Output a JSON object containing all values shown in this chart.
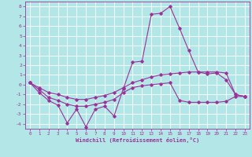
{
  "title": "",
  "xlabel": "Windchill (Refroidissement éolien,°C)",
  "xlim": [
    -0.5,
    23.5
  ],
  "ylim": [
    -4.5,
    8.5
  ],
  "xticks": [
    0,
    1,
    2,
    3,
    4,
    5,
    6,
    7,
    8,
    9,
    10,
    11,
    12,
    13,
    14,
    15,
    16,
    17,
    18,
    19,
    20,
    21,
    22,
    23
  ],
  "yticks": [
    8,
    7,
    6,
    5,
    4,
    3,
    2,
    1,
    0,
    -1,
    -2,
    -3,
    -4
  ],
  "background_color": "#b3e6e6",
  "grid_color": "#ffffff",
  "line_color": "#993399",
  "line1_x": [
    0,
    1,
    2,
    3,
    4,
    5,
    6,
    7,
    8,
    9,
    10,
    11,
    12,
    13,
    14,
    15,
    16,
    17,
    18,
    19,
    20,
    21,
    22,
    23
  ],
  "line1_y": [
    0.2,
    -0.8,
    -1.6,
    -2.1,
    -3.9,
    -2.5,
    -4.3,
    -2.5,
    -2.2,
    -3.2,
    -0.4,
    2.3,
    2.4,
    7.2,
    7.3,
    8.0,
    5.8,
    3.5,
    1.3,
    1.1,
    1.2,
    0.5,
    -1.0,
    -1.2
  ],
  "line2_x": [
    0,
    1,
    2,
    3,
    4,
    5,
    6,
    7,
    8,
    9,
    10,
    11,
    12,
    13,
    14,
    15,
    16,
    17,
    18,
    19,
    20,
    21,
    22,
    23
  ],
  "line2_y": [
    0.2,
    -0.5,
    -1.3,
    -1.6,
    -2.0,
    -2.2,
    -2.2,
    -2.0,
    -1.8,
    -1.5,
    -0.8,
    -0.3,
    -0.1,
    -0.0,
    0.1,
    0.2,
    -1.6,
    -1.8,
    -1.8,
    -1.8,
    -1.8,
    -1.7,
    -1.2,
    -1.2
  ],
  "line3_x": [
    0,
    1,
    2,
    3,
    4,
    5,
    6,
    7,
    8,
    9,
    10,
    11,
    12,
    13,
    14,
    15,
    16,
    17,
    18,
    19,
    20,
    21,
    22,
    23
  ],
  "line3_y": [
    0.2,
    -0.3,
    -0.8,
    -1.0,
    -1.3,
    -1.5,
    -1.5,
    -1.3,
    -1.1,
    -0.8,
    -0.3,
    0.2,
    0.5,
    0.8,
    1.0,
    1.1,
    1.2,
    1.3,
    1.3,
    1.3,
    1.3,
    1.2,
    -1.0,
    -1.2
  ]
}
